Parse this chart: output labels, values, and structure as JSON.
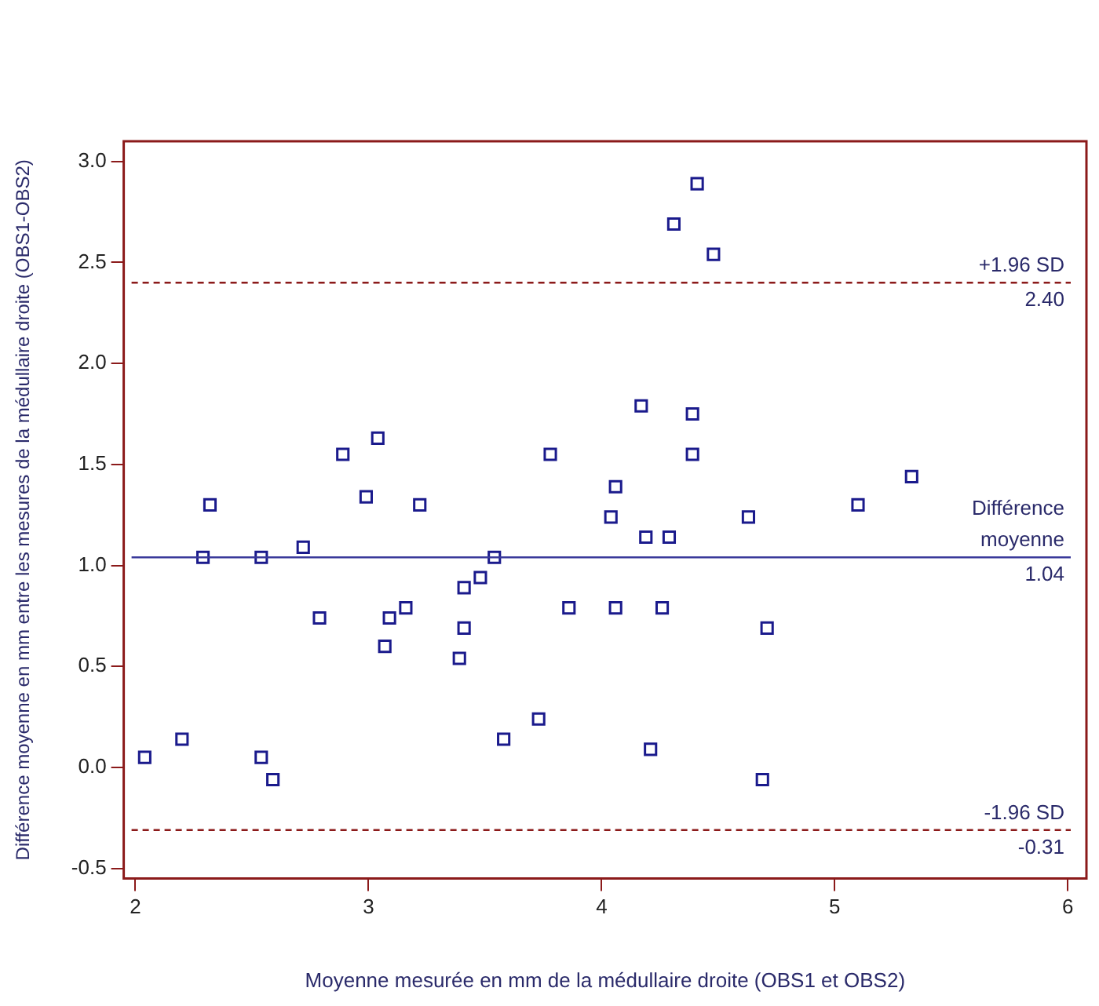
{
  "chart_data": {
    "type": "scatter",
    "xlabel": "Moyenne mesurée en mm de la médullaire droite (OBS1 et OBS2)",
    "ylabel": "Différence moyenne en mm entre les mesures de la médullaire droite (OBS1-OBS2)",
    "marker": "square",
    "grid": false,
    "xlim": [
      1.95,
      6.08
    ],
    "ylim": [
      -0.55,
      3.1
    ],
    "xticks": [
      2,
      3,
      4,
      5,
      6
    ],
    "yticks": [
      {
        "value": -0.5,
        "label": "-0.5"
      },
      {
        "value": 0,
        "label": "0.0"
      },
      {
        "value": 0.5,
        "label": "0.5"
      },
      {
        "value": 1,
        "label": "1.0"
      },
      {
        "value": 1.5,
        "label": "1.5"
      },
      {
        "value": 2,
        "label": "2.0"
      },
      {
        "value": 2.5,
        "label": "2.5"
      },
      {
        "value": 3,
        "label": "3.0"
      }
    ],
    "series": [
      {
        "color": "#1a1a8c",
        "x": [
          2.04,
          2.2,
          2.29,
          2.32,
          2.54,
          2.54,
          2.59,
          2.72,
          2.79,
          2.89,
          2.99,
          3.04,
          3.09,
          3.07,
          3.16,
          3.22,
          3.41,
          3.48,
          3.41,
          3.39,
          3.54,
          3.58,
          3.73,
          3.78,
          3.86,
          4.17,
          4.39,
          4.39,
          4.06,
          4.04,
          4.19,
          4.29,
          4.63,
          5.1,
          4.06,
          4.26,
          4.71,
          4.21,
          4.69,
          4.41,
          4.31,
          4.48,
          5.33
        ],
        "values": [
          0.05,
          0.14,
          1.04,
          1.3,
          1.04,
          0.05,
          -0.06,
          1.09,
          0.74,
          1.55,
          1.34,
          1.63,
          0.74,
          0.6,
          0.79,
          1.3,
          0.89,
          0.94,
          0.69,
          0.54,
          1.04,
          0.14,
          0.24,
          1.55,
          0.79,
          1.79,
          1.75,
          1.55,
          1.39,
          1.24,
          1.14,
          1.14,
          1.24,
          1.3,
          0.79,
          0.79,
          0.69,
          0.09,
          -0.06,
          2.89,
          2.69,
          2.54,
          1.44
        ]
      }
    ],
    "annotations": [
      {
        "text": "2.40",
        "y": 2.4
      },
      {
        "text": "1.04",
        "y": 1.04
      },
      {
        "text": "-0.31",
        "y": -0.31
      }
    ],
    "ref_lines": [
      {
        "axis": "y",
        "value": 2.4,
        "label": "+1.96 SD",
        "color": "#8b1a1a",
        "line_style": "dashed"
      },
      {
        "axis": "y",
        "value": 1.04,
        "label": "Différence moyenne",
        "color": "#3a3a9a",
        "line_style": "solid"
      },
      {
        "axis": "y",
        "value": -0.31,
        "label": "-1.96 SD",
        "color": "#8b1a1a",
        "line_style": "dashed"
      }
    ]
  }
}
